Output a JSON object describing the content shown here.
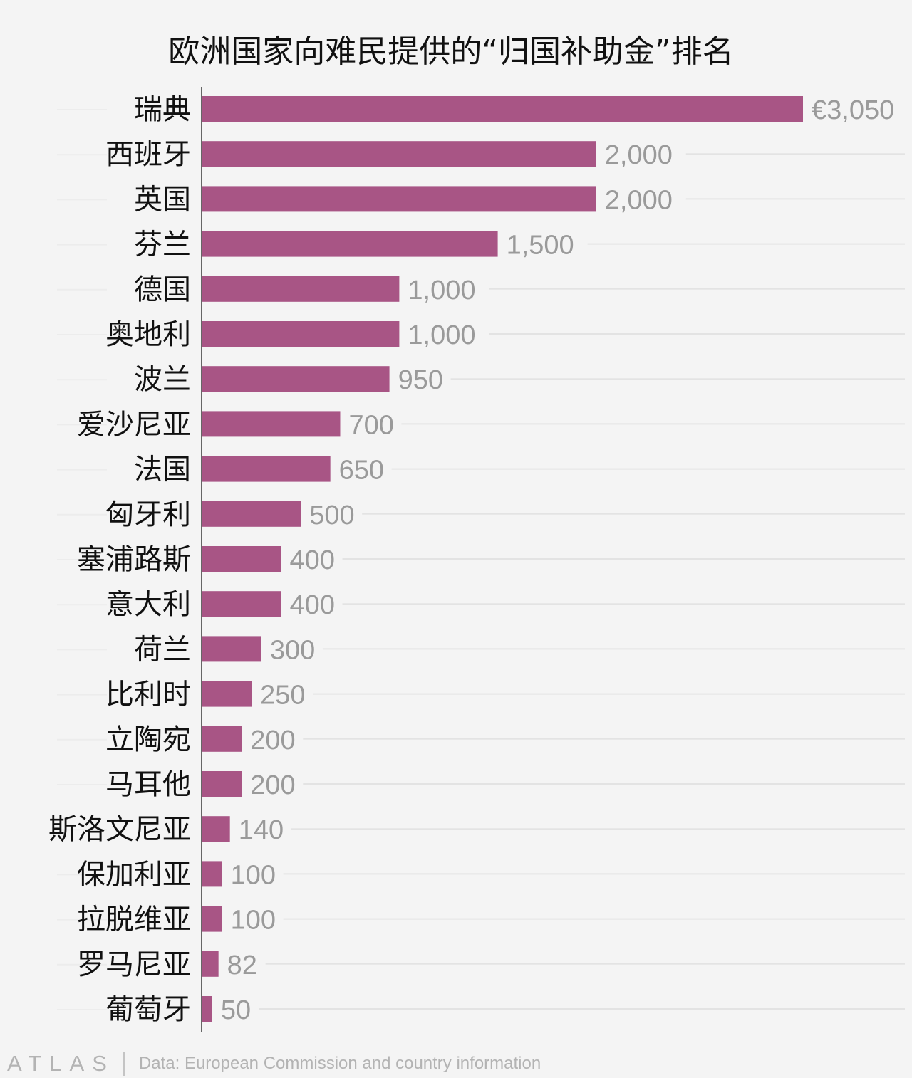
{
  "title": "欧洲国家向难民提供的“归国补助金”排名",
  "footer": {
    "logo": "ATLAS",
    "source": "Data: European Commission and country information"
  },
  "colors": {
    "bar": "#a85585",
    "background": "#f4f4f4",
    "value_text": "#9a9a9a",
    "grid": "#e3e3e3"
  },
  "chart_data": {
    "type": "bar",
    "orientation": "horizontal",
    "title": "欧洲国家向难民提供的“归国补助金”排名",
    "xlabel": "",
    "ylabel": "",
    "value_prefix_first": "€",
    "grid": true,
    "categories": [
      "瑞典",
      "西班牙",
      "英国",
      "芬兰",
      "德国",
      "奥地利",
      "波兰",
      "爱沙尼亚",
      "法国",
      "匈牙利",
      "塞浦路斯",
      "意大利",
      "荷兰",
      "比利时",
      "立陶宛",
      "马耳他",
      "斯洛文尼亚",
      "保加利亚",
      "拉脱维亚",
      "罗马尼亚",
      "葡萄牙"
    ],
    "values": [
      3050,
      2000,
      2000,
      1500,
      1000,
      1000,
      950,
      700,
      650,
      500,
      400,
      400,
      300,
      250,
      200,
      200,
      140,
      100,
      100,
      82,
      50
    ],
    "labels": [
      "€3,050",
      "2,000",
      "2,000",
      "1,500",
      "1,000",
      "1,000",
      "950",
      "700",
      "650",
      "500",
      "400",
      "400",
      "300",
      "250",
      "200",
      "200",
      "140",
      "100",
      "100",
      "82",
      "50"
    ],
    "xlim": [
      0,
      3050
    ]
  }
}
